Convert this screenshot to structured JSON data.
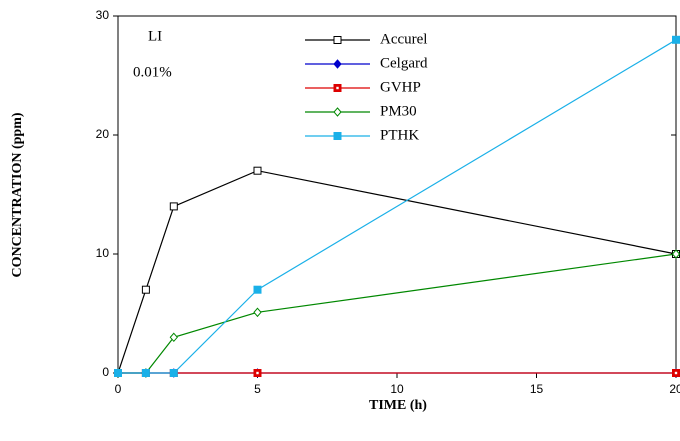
{
  "chart_data": {
    "type": "line",
    "x_label": "TIME (h)",
    "y_label": "CONCENTRATION (ppm)",
    "annotations": [
      "LI",
      "0.01%"
    ],
    "x": [
      0,
      1,
      2,
      5,
      20
    ],
    "series": [
      {
        "name": "Accurel",
        "color": "#000000",
        "marker": "square-open",
        "values": [
          0,
          7,
          14,
          17,
          10
        ]
      },
      {
        "name": "Celgard",
        "color": "#0000cc",
        "marker": "diamond-filled",
        "values": [
          0,
          0,
          0,
          0,
          0
        ]
      },
      {
        "name": "GVHP",
        "color": "#dd0000",
        "marker": "square-dot",
        "values": [
          0,
          0,
          0,
          0,
          0
        ]
      },
      {
        "name": "PM30",
        "color": "#008800",
        "marker": "diamond-open",
        "values": [
          0,
          0,
          3,
          5.1,
          10
        ]
      },
      {
        "name": "PTHK",
        "color": "#1ab0e8",
        "marker": "square-filled",
        "values": [
          0,
          0,
          0,
          7,
          28
        ]
      }
    ],
    "xlim": [
      0,
      20
    ],
    "xticks": [
      0,
      5,
      10,
      15,
      20
    ],
    "ylim": [
      0,
      30
    ],
    "yticks": [
      0,
      10,
      20,
      30
    ],
    "grid": false
  }
}
